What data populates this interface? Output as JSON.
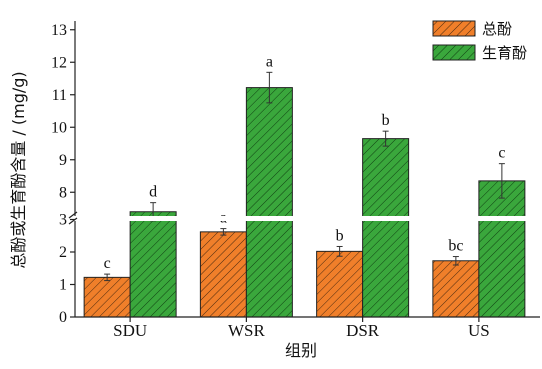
{
  "chart_data": {
    "type": "bar",
    "xlabel": "组别",
    "ylabel": "总酚或生育酚含量 / (mg/g)",
    "categories": [
      "SDU",
      "WSR",
      "DSR",
      "US"
    ],
    "axis_break": {
      "lower_ylim": [
        0,
        3
      ],
      "upper_ylim": [
        7.3,
        13
      ]
    },
    "lower_ticks": [
      "0",
      "1",
      "2",
      "3"
    ],
    "upper_ticks": [
      "8",
      "9",
      "10",
      "11",
      "12",
      "13"
    ],
    "legend_position": "top-right",
    "series": [
      {
        "name": "总酚",
        "color": "#f07f2a",
        "hatch": "diagonal",
        "values": [
          1.22,
          2.62,
          2.02,
          1.73
        ],
        "errors": [
          0.1,
          0.1,
          0.15,
          0.13
        ],
        "labels": [
          "c",
          "a",
          "b",
          "bc"
        ]
      },
      {
        "name": "生育酚",
        "color": "#3aa73c",
        "hatch": "diagonal",
        "values": [
          7.4,
          11.22,
          9.65,
          8.35
        ],
        "errors": [
          0.28,
          0.47,
          0.23,
          0.53
        ],
        "labels": [
          "d",
          "a",
          "b",
          "c"
        ]
      }
    ]
  }
}
